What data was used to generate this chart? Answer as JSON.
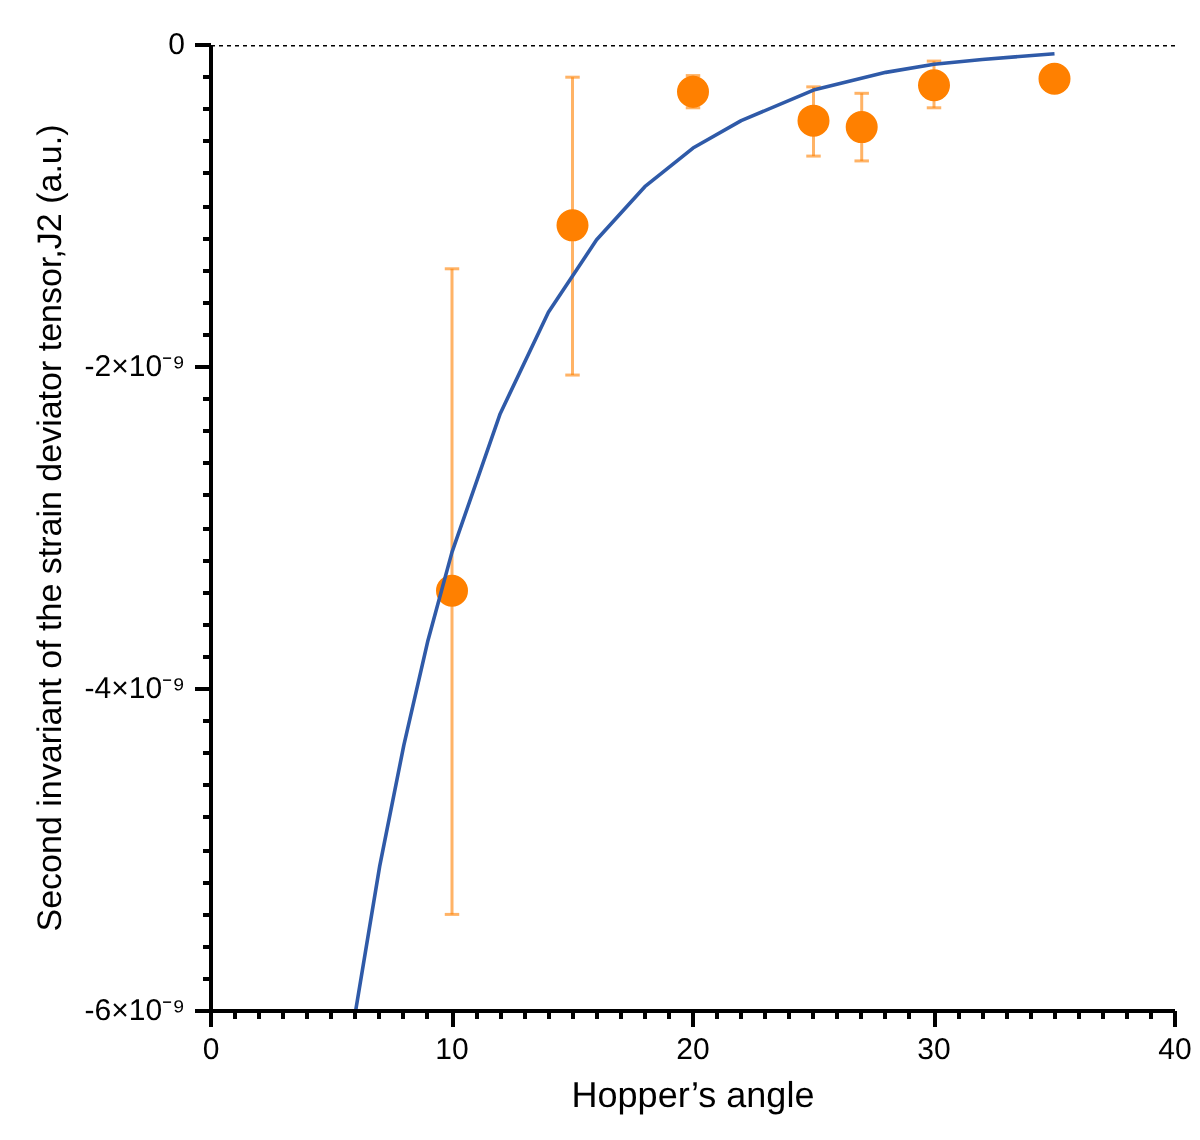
{
  "chart_data": {
    "type": "scatter",
    "xlabel": "Hopper’s angle",
    "ylabel": "Second invariant of the strain deviator tensor,J2 (a.u.)",
    "xlim": [
      0,
      40
    ],
    "ylim": [
      -6e-09,
      0
    ],
    "xticks": [
      0,
      10,
      20,
      30,
      40,
      {
        "value": 1,
        "label": null
      },
      {
        "value": 2,
        "label": null
      },
      {
        "value": 3,
        "label": null
      },
      {
        "value": 4,
        "label": null
      },
      {
        "value": 5,
        "label": null
      },
      {
        "value": 6,
        "label": null
      },
      {
        "value": 7,
        "label": null
      },
      {
        "value": 8,
        "label": null
      },
      {
        "value": 9,
        "label": null
      },
      {
        "value": 11,
        "label": null
      },
      {
        "value": 12,
        "label": null
      },
      {
        "value": 13,
        "label": null
      },
      {
        "value": 14,
        "label": null
      },
      {
        "value": 15,
        "label": null
      },
      {
        "value": 16,
        "label": null
      },
      {
        "value": 17,
        "label": null
      },
      {
        "value": 18,
        "label": null
      },
      {
        "value": 19,
        "label": null
      },
      {
        "value": 21,
        "label": null
      },
      {
        "value": 22,
        "label": null
      },
      {
        "value": 23,
        "label": null
      },
      {
        "value": 24,
        "label": null
      },
      {
        "value": 25,
        "label": null
      },
      {
        "value": 26,
        "label": null
      },
      {
        "value": 27,
        "label": null
      },
      {
        "value": 28,
        "label": null
      },
      {
        "value": 29,
        "label": null
      },
      {
        "value": 31,
        "label": null
      },
      {
        "value": 32,
        "label": null
      },
      {
        "value": 33,
        "label": null
      },
      {
        "value": 34,
        "label": null
      },
      {
        "value": 35,
        "label": null
      },
      {
        "value": 36,
        "label": null
      },
      {
        "value": 37,
        "label": null
      },
      {
        "value": 38,
        "label": null
      },
      {
        "value": 39,
        "label": null
      }
    ],
    "yticks": [
      0,
      {
        "value": -2e-09,
        "label": "-2×10⁻⁹"
      },
      {
        "value": -4e-09,
        "label": "-4×10⁻⁹"
      },
      {
        "value": -6e-09,
        "label": "-6×10⁻⁹"
      },
      {
        "value": -2e-10,
        "label": null
      },
      {
        "value": -4e-10,
        "label": null
      },
      {
        "value": -6e-10,
        "label": null
      },
      {
        "value": -8e-10,
        "label": null
      },
      {
        "value": -1e-09,
        "label": null
      },
      {
        "value": -1.2e-09,
        "label": null
      },
      {
        "value": -1.4e-09,
        "label": null
      },
      {
        "value": -1.6e-09,
        "label": null
      },
      {
        "value": -1.8e-09,
        "label": null
      },
      {
        "value": -2.2e-09,
        "label": null
      },
      {
        "value": -2.4e-09,
        "label": null
      },
      {
        "value": -2.6e-09,
        "label": null
      },
      {
        "value": -2.8e-09,
        "label": null
      },
      {
        "value": -3e-09,
        "label": null
      },
      {
        "value": -3.2e-09,
        "label": null
      },
      {
        "value": -3.4e-09,
        "label": null
      },
      {
        "value": -3.6e-09,
        "label": null
      },
      {
        "value": -3.8e-09,
        "label": null
      },
      {
        "value": -4.2e-09,
        "label": null
      },
      {
        "value": -4.4e-09,
        "label": null
      },
      {
        "value": -4.6e-09,
        "label": null
      },
      {
        "value": -4.8e-09,
        "label": null
      },
      {
        "value": -5e-09,
        "label": null
      },
      {
        "value": -5.2e-09,
        "label": null
      },
      {
        "value": -5.4e-09,
        "label": null
      },
      {
        "value": -5.6e-09,
        "label": null
      },
      {
        "value": -5.8e-09,
        "label": null
      }
    ],
    "grid": false,
    "ref_lines": [
      {
        "axis": "y",
        "value": 0,
        "line_style": "dotted",
        "color": "#000000"
      }
    ],
    "series": [
      {
        "marker": "circle",
        "color": "#ff8000",
        "x": [
          10,
          15,
          20,
          25,
          27,
          30,
          35
        ],
        "values": [
          -3.39e-09,
          -1.12e-09,
          -2.9e-10,
          -4.7e-10,
          -5.1e-10,
          -2.5e-10,
          -2.1e-10
        ],
        "errors": [
          [
            -5.4e-09,
            -1.39e-09
          ],
          [
            -2.05e-09,
            -2e-10
          ],
          [
            -3.9e-10,
            -1.9e-10
          ],
          [
            -6.9e-10,
            -2.6e-10
          ],
          [
            -7.2e-10,
            -3e-10
          ],
          [
            -3.9e-10,
            -1e-10
          ],
          null
        ]
      },
      {
        "type": "line",
        "marker": "none",
        "color": "#2f5aa8",
        "line_style": "solid",
        "x": [
          6,
          7,
          8,
          9,
          10,
          12,
          14,
          16,
          18,
          20,
          22,
          25,
          28,
          30,
          32,
          35
        ],
        "values": [
          -6e-09,
          -5.1e-09,
          -4.35e-09,
          -3.7e-09,
          -3.15e-09,
          -2.29e-09,
          -1.66e-09,
          -1.21e-09,
          -8.8e-10,
          -6.4e-10,
          -4.7e-10,
          -2.8e-10,
          -1.7e-10,
          -1.2e-10,
          -9e-11,
          -5.4e-11
        ]
      }
    ]
  }
}
